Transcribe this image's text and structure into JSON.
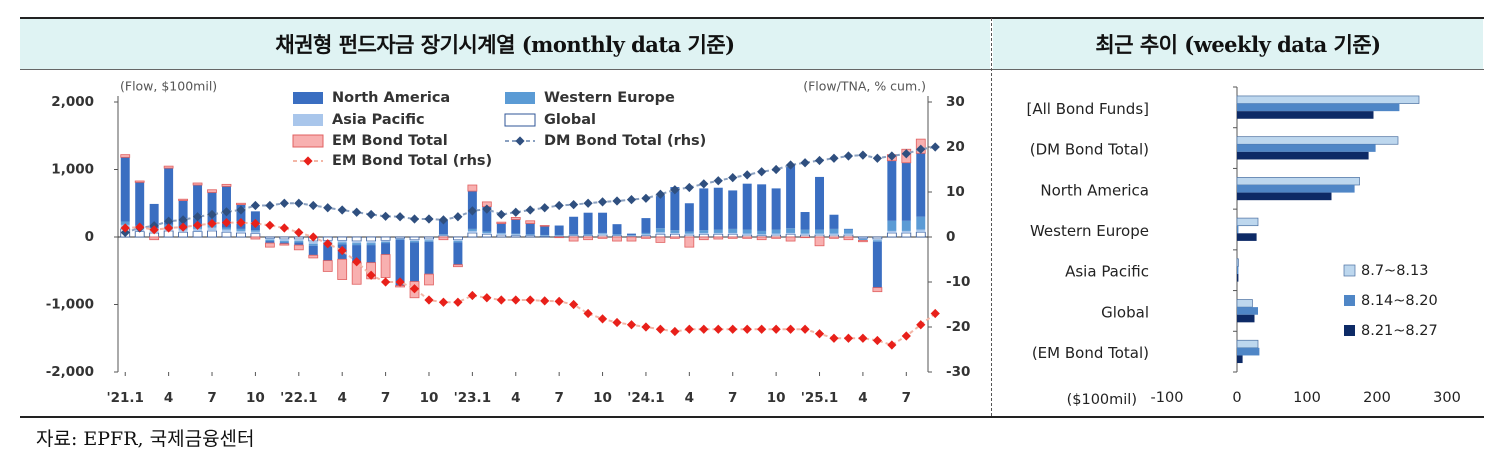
{
  "left_title": "채권형 펀드자금 장기시계열 (monthly data 기준)",
  "right_title": "최근 추이 (weekly data 기준)",
  "source": "자료: EPFR,  국제금융센터",
  "colors": {
    "north_america": "#3a6ec1",
    "asia_pacific": "#a9c6eb",
    "western_europe": "#5b9bd5",
    "global": "#ffffff",
    "global_stroke": "#2f5597",
    "em_bar": "#f8b0b0",
    "em_bar_stroke": "#e06060",
    "em_line": "#e8201a",
    "dm_line": "#2f4f7f",
    "week1": "#bdd7ee",
    "week2": "#4f86c6",
    "week3": "#0d2a66"
  },
  "chart_data": [
    {
      "type": "bar",
      "stacked": true,
      "left_unit_label": "(Flow, $100mil)",
      "right_unit_label": "(Flow/TNA, % cum.)",
      "x_tick_labels": [
        "'21.1",
        "4",
        "7",
        "10",
        "'22.1",
        "4",
        "7",
        "10",
        "'23.1",
        "4",
        "7",
        "10",
        "'24.1",
        "4",
        "7",
        "10",
        "'25.1",
        "4",
        "7"
      ],
      "x_tick_index": [
        0,
        3,
        6,
        9,
        12,
        15,
        18,
        21,
        24,
        27,
        30,
        33,
        36,
        39,
        42,
        45,
        48,
        51,
        54
      ],
      "ylim": [
        -2000,
        2000
      ],
      "y_ticks": [
        2000,
        1000,
        0,
        -1000,
        -2000
      ],
      "y_tick_labels": [
        "2,000",
        "1,000",
        "0",
        "-1,000",
        "-2,000"
      ],
      "ylim_rhs": [
        -30,
        30
      ],
      "y_ticks_rhs": [
        30,
        20,
        10,
        0,
        -10,
        -20,
        -30
      ],
      "legend": [
        {
          "key": "north_america",
          "label": "North America",
          "kind": "bar"
        },
        {
          "key": "western_europe",
          "label": "Western Europe",
          "kind": "bar"
        },
        {
          "key": "asia_pacific",
          "label": "Asia Pacific",
          "kind": "bar"
        },
        {
          "key": "global",
          "label": "Global",
          "kind": "bar"
        },
        {
          "key": "em_bar",
          "label": "EM Bond Total",
          "kind": "bar"
        },
        {
          "key": "dm_line",
          "label": "DM Bond Total (rhs)",
          "kind": "line"
        },
        {
          "key": "em_line",
          "label": "EM Bond Total (rhs)",
          "kind": "line"
        }
      ],
      "series": [
        {
          "name": "Global",
          "key": "global",
          "values": [
            120,
            80,
            60,
            90,
            70,
            80,
            90,
            70,
            60,
            50,
            -20,
            -30,
            -30,
            -60,
            -50,
            -50,
            -60,
            -60,
            -50,
            -20,
            -40,
            -30,
            20,
            -40,
            60,
            40,
            30,
            20,
            20,
            10,
            10,
            20,
            20,
            30,
            20,
            10,
            20,
            40,
            40,
            30,
            40,
            40,
            40,
            30,
            20,
            30,
            40,
            30,
            30,
            30,
            30,
            -20,
            -30,
            60,
            60,
            70
          ]
        },
        {
          "name": "Asia Pacific",
          "key": "asia_pacific",
          "values": [
            60,
            50,
            40,
            50,
            40,
            40,
            50,
            40,
            30,
            30,
            -20,
            -30,
            -30,
            -40,
            -30,
            -30,
            -30,
            -30,
            -20,
            -10,
            -20,
            -20,
            10,
            -20,
            30,
            20,
            20,
            20,
            10,
            10,
            10,
            10,
            10,
            20,
            10,
            10,
            20,
            30,
            20,
            20,
            20,
            20,
            20,
            20,
            20,
            20,
            20,
            20,
            20,
            20,
            20,
            -10,
            -20,
            30,
            30,
            40
          ]
        },
        {
          "name": "Western Europe",
          "key": "western_europe",
          "values": [
            50,
            40,
            30,
            40,
            30,
            30,
            40,
            30,
            30,
            20,
            -20,
            -20,
            -20,
            -30,
            -30,
            -30,
            -30,
            -30,
            -20,
            -10,
            -20,
            -20,
            10,
            -20,
            30,
            20,
            10,
            10,
            10,
            10,
            10,
            10,
            10,
            10,
            10,
            10,
            20,
            60,
            40,
            30,
            40,
            50,
            60,
            60,
            50,
            60,
            70,
            60,
            60,
            70,
            70,
            -20,
            -20,
            150,
            150,
            190
          ]
        },
        {
          "name": "North America",
          "key": "north_america",
          "values": [
            950,
            640,
            360,
            840,
            400,
            620,
            480,
            610,
            360,
            280,
            -30,
            -20,
            -40,
            -140,
            -240,
            -220,
            -260,
            -260,
            -170,
            -680,
            -580,
            -480,
            210,
            -330,
            560,
            370,
            140,
            210,
            160,
            130,
            140,
            260,
            320,
            300,
            150,
            20,
            220,
            490,
            640,
            420,
            620,
            620,
            570,
            680,
            690,
            610,
            940,
            260,
            780,
            210,
            0,
            0,
            -680,
            890,
            860,
            940
          ]
        },
        {
          "name": "EM Bond Total",
          "key": "em_bar",
          "values": [
            40,
            20,
            -40,
            30,
            20,
            30,
            40,
            30,
            20,
            -30,
            -60,
            -20,
            -70,
            -40,
            -160,
            -300,
            -320,
            -240,
            -340,
            -20,
            -240,
            -160,
            -40,
            -30,
            90,
            70,
            20,
            30,
            40,
            10,
            -10,
            -60,
            -40,
            -20,
            -60,
            -60,
            -20,
            -80,
            -20,
            -150,
            -40,
            -30,
            -20,
            -20,
            -40,
            -20,
            -60,
            -10,
            -130,
            -20,
            -40,
            -20,
            -60,
            90,
            200,
            210
          ]
        }
      ],
      "line_series": [
        {
          "name": "DM Bond Total (rhs)",
          "key": "dm_line",
          "values": [
            1.0,
            2.0,
            2.5,
            3.5,
            3.8,
            4.5,
            5.0,
            5.6,
            6.0,
            7.0,
            7.0,
            7.5,
            7.5,
            7.0,
            6.5,
            6.0,
            5.5,
            5.0,
            4.6,
            4.5,
            4.0,
            4.0,
            3.8,
            4.5,
            5.8,
            6.2,
            5.0,
            5.5,
            6.0,
            6.5,
            7.0,
            7.2,
            7.5,
            7.8,
            8.0,
            8.3,
            8.6,
            9.5,
            10.5,
            11.0,
            11.8,
            12.5,
            13.2,
            13.8,
            14.5,
            15.0,
            16.0,
            16.5,
            17.0,
            17.5,
            18.0,
            18.2,
            17.5,
            18.0,
            18.5,
            19.5,
            20.0
          ]
        },
        {
          "name": "EM Bond Total (rhs)",
          "key": "em_line",
          "values": [
            2.0,
            2.2,
            1.6,
            2.0,
            2.2,
            2.6,
            3.0,
            3.2,
            3.2,
            3.0,
            2.6,
            2.0,
            1.0,
            0.0,
            -1.5,
            -3.0,
            -5.5,
            -8.5,
            -10.0,
            -10.0,
            -11.5,
            -14.0,
            -14.5,
            -14.5,
            -13.0,
            -13.5,
            -14.0,
            -14.0,
            -14.0,
            -14.2,
            -14.3,
            -15.0,
            -17.0,
            -18.2,
            -19.0,
            -19.5,
            -20.0,
            -20.5,
            -21.0,
            -20.5,
            -20.5,
            -20.5,
            -20.5,
            -20.5,
            -20.5,
            -20.5,
            -20.5,
            -20.5,
            -21.5,
            -22.5,
            -22.5,
            -22.5,
            -23.0,
            -24.0,
            -22.0,
            -19.5,
            -17.0
          ]
        }
      ]
    },
    {
      "type": "bar",
      "orientation": "horizontal",
      "categories": [
        "[All Bond Funds]",
        "(DM Bond Total)",
        "North America",
        "Western Europe",
        "Asia Pacific",
        "Global",
        "(EM Bond Total)"
      ],
      "series": [
        {
          "name": "8.7~8.13",
          "key": "week1",
          "values": [
            260,
            230,
            175,
            30,
            2,
            22,
            30
          ]
        },
        {
          "name": "8.14~8.20",
          "key": "week2",
          "values": [
            232,
            198,
            168,
            2,
            2,
            30,
            32
          ]
        },
        {
          "name": "8.21~8.27",
          "key": "week3",
          "values": [
            195,
            188,
            135,
            28,
            2,
            25,
            8
          ]
        }
      ],
      "xlim": [
        -100,
        300
      ],
      "x_ticks": [
        -100,
        0,
        100,
        200,
        300
      ],
      "x_unit_label": "($100mil)"
    }
  ]
}
